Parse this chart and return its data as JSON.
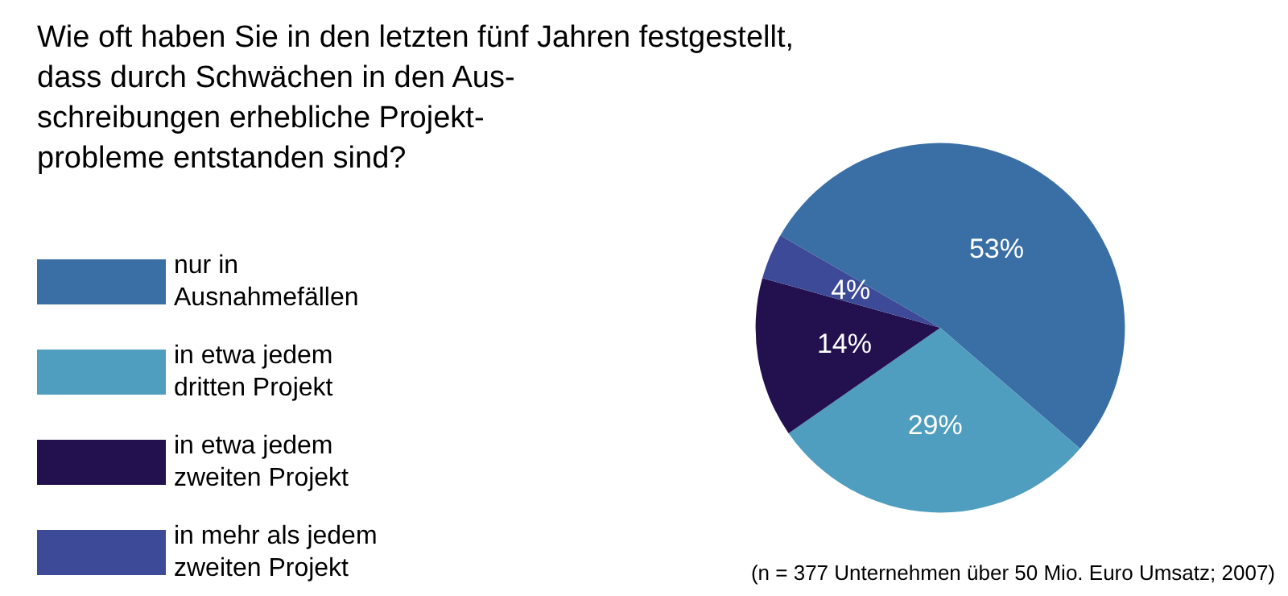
{
  "chart_data": {
    "type": "pie",
    "title": "Wie oft haben Sie in den letzten fünf Jahren festgestellt,\ndass durch Schwächen in den Aus-\nschreibungen erhebliche Projekt-\nprobleme entstanden sind?",
    "categories": [
      "nur in Ausnahmefällen",
      "in etwa jedem dritten Projekt",
      "in etwa jedem zweiten Projekt",
      "in mehr als jedem zweiten Projekt"
    ],
    "values": [
      53,
      29,
      14,
      4
    ],
    "colors": [
      "#3a6fa6",
      "#4f9dbf",
      "#22104f",
      "#3d4a98"
    ],
    "value_labels": [
      "53%",
      "29%",
      "14%",
      "4%"
    ],
    "legend": "left",
    "annotations": [
      "(n = 377 Unternehmen über 50 Mio. Euro Umsatz; 2007)"
    ]
  }
}
